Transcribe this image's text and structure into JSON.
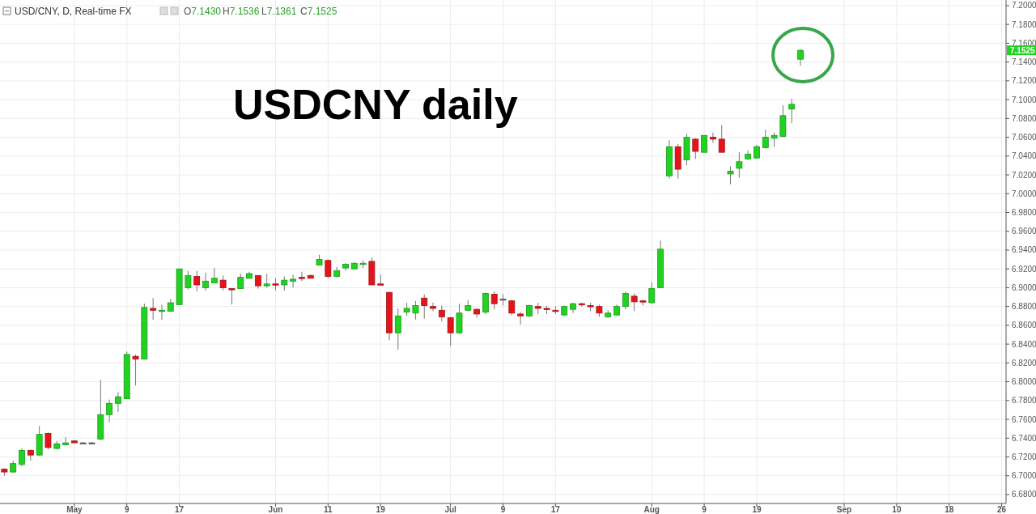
{
  "chart_data": {
    "type": "candlestick",
    "title": "USDCNY daily",
    "subtitle": "USD/CNY, D, Real-time FX",
    "annotations": [
      "O7.1430",
      "H7.1536",
      "L7.1361",
      "C7.1525",
      {
        "text": "7.1525",
        "y": 7.1525
      }
    ],
    "categories": [
      null,
      null,
      null,
      null,
      null,
      null,
      null,
      null,
      "May",
      null,
      null,
      null,
      null,
      null,
      "9",
      null,
      null,
      null,
      null,
      null,
      "17",
      null,
      null,
      null,
      null,
      null,
      null,
      null,
      null,
      null,
      null,
      "Jun",
      null,
      null,
      null,
      null,
      null,
      "11",
      null,
      null,
      null,
      null,
      null,
      "19",
      null,
      null,
      null,
      null,
      null,
      null,
      null,
      "Jul",
      null,
      null,
      null,
      null,
      null,
      "9",
      null,
      null,
      null,
      null,
      null,
      "17",
      null,
      null,
      null,
      null,
      null,
      null,
      null,
      null,
      null,
      null,
      "Aug",
      null,
      null,
      null,
      null,
      null,
      "9",
      null,
      null,
      null,
      null,
      null,
      "19",
      null,
      null,
      null,
      null,
      null,
      null,
      null,
      null,
      null,
      "Sep",
      null,
      null,
      null,
      null,
      null,
      "10",
      null,
      null,
      null,
      null,
      null,
      "18",
      null,
      null,
      null,
      null,
      null,
      "26"
    ],
    "ohlc": [
      [
        6.707,
        6.708,
        6.7,
        6.704
      ],
      [
        6.704,
        6.716,
        6.703,
        6.713
      ],
      [
        6.712,
        6.729,
        6.71,
        6.727
      ],
      [
        6.727,
        6.728,
        6.716,
        6.722
      ],
      [
        6.722,
        6.753,
        6.721,
        6.744
      ],
      [
        6.745,
        6.746,
        6.728,
        6.73
      ],
      [
        6.729,
        6.737,
        6.728,
        6.734
      ],
      [
        6.733,
        6.741,
        6.733,
        6.735
      ],
      [
        6.737,
        6.738,
        6.735,
        6.735
      ],
      [
        6.735,
        6.736,
        6.734,
        6.735
      ],
      [
        6.735,
        6.736,
        6.734,
        6.735
      ],
      [
        6.739,
        6.802,
        6.738,
        6.765
      ],
      [
        6.765,
        6.781,
        6.757,
        6.777
      ],
      [
        6.777,
        6.789,
        6.768,
        6.784
      ],
      [
        6.782,
        6.832,
        6.782,
        6.829
      ],
      [
        6.827,
        6.829,
        6.796,
        6.824
      ],
      [
        6.824,
        6.883,
        6.824,
        6.879
      ],
      [
        6.878,
        6.889,
        6.866,
        6.876
      ],
      [
        6.875,
        6.882,
        6.866,
        6.876
      ],
      [
        6.875,
        6.888,
        6.875,
        6.884
      ],
      [
        6.882,
        6.92,
        6.882,
        6.92
      ],
      [
        6.9,
        6.918,
        6.898,
        6.913
      ],
      [
        6.912,
        6.918,
        6.896,
        6.903
      ],
      [
        6.9,
        6.916,
        6.897,
        6.907
      ],
      [
        6.905,
        6.921,
        6.905,
        6.91
      ],
      [
        6.908,
        6.913,
        6.897,
        6.9
      ],
      [
        6.899,
        6.899,
        6.882,
        6.898
      ],
      [
        6.899,
        6.915,
        6.899,
        6.911
      ],
      [
        6.91,
        6.917,
        6.91,
        6.915
      ],
      [
        6.913,
        6.913,
        6.899,
        6.902
      ],
      [
        6.902,
        6.915,
        6.9,
        6.904
      ],
      [
        6.904,
        6.91,
        6.897,
        6.903
      ],
      [
        6.903,
        6.912,
        6.897,
        6.908
      ],
      [
        6.907,
        6.914,
        6.9,
        6.909
      ],
      [
        6.911,
        6.917,
        6.907,
        6.91
      ],
      [
        6.913,
        6.914,
        6.91,
        6.91
      ],
      [
        6.924,
        6.935,
        6.924,
        6.93
      ],
      [
        6.929,
        6.93,
        6.91,
        6.912
      ],
      [
        6.912,
        6.922,
        6.911,
        6.918
      ],
      [
        6.921,
        6.926,
        6.918,
        6.925
      ],
      [
        6.92,
        6.927,
        6.92,
        6.926
      ],
      [
        6.925,
        6.929,
        6.921,
        6.926
      ],
      [
        6.928,
        6.932,
        6.903,
        6.903
      ],
      [
        6.904,
        6.914,
        6.903,
        6.903
      ],
      [
        6.895,
        6.896,
        6.844,
        6.852
      ],
      [
        6.852,
        6.878,
        6.834,
        6.87
      ],
      [
        6.874,
        6.884,
        6.87,
        6.878
      ],
      [
        6.873,
        6.886,
        6.866,
        6.881
      ],
      [
        6.889,
        6.893,
        6.867,
        6.881
      ],
      [
        6.88,
        6.884,
        6.875,
        6.878
      ],
      [
        6.876,
        6.881,
        6.864,
        6.869
      ],
      [
        6.868,
        6.869,
        6.838,
        6.852
      ],
      [
        6.852,
        6.883,
        6.851,
        6.873
      ],
      [
        6.876,
        6.887,
        6.875,
        6.881
      ],
      [
        6.877,
        6.878,
        6.868,
        6.872
      ],
      [
        6.874,
        6.895,
        6.872,
        6.894
      ],
      [
        6.893,
        6.896,
        6.877,
        6.883
      ],
      [
        6.888,
        6.893,
        6.881,
        6.888
      ],
      [
        6.886,
        6.887,
        6.871,
        6.873
      ],
      [
        6.872,
        6.874,
        6.861,
        6.87
      ],
      [
        6.87,
        6.882,
        6.869,
        6.881
      ],
      [
        6.88,
        6.884,
        6.872,
        6.878
      ],
      [
        6.878,
        6.881,
        6.872,
        6.877
      ],
      [
        6.876,
        6.88,
        6.872,
        6.875
      ],
      [
        6.871,
        6.881,
        6.87,
        6.88
      ],
      [
        6.877,
        6.884,
        6.873,
        6.883
      ],
      [
        6.883,
        6.884,
        6.88,
        6.882
      ],
      [
        6.881,
        6.884,
        6.875,
        6.88
      ],
      [
        6.88,
        6.882,
        6.869,
        6.873
      ],
      [
        6.869,
        6.876,
        6.868,
        6.873
      ],
      [
        6.871,
        6.882,
        6.87,
        6.88
      ],
      [
        6.88,
        6.896,
        6.877,
        6.894
      ],
      [
        6.891,
        6.894,
        6.875,
        6.885
      ],
      [
        6.886,
        6.887,
        6.881,
        6.885
      ],
      [
        6.884,
        6.906,
        6.883,
        6.899
      ],
      [
        6.9,
        6.95,
        6.9,
        6.941
      ],
      [
        7.019,
        7.057,
        7.016,
        7.05
      ],
      [
        7.05,
        7.053,
        7.016,
        7.026
      ],
      [
        7.036,
        7.064,
        7.03,
        7.06
      ],
      [
        7.058,
        7.059,
        7.037,
        7.045
      ],
      [
        7.044,
        7.062,
        7.044,
        7.062
      ],
      [
        7.06,
        7.065,
        7.054,
        7.058
      ],
      [
        7.058,
        7.073,
        7.044,
        7.044
      ],
      [
        7.021,
        7.029,
        7.01,
        7.024
      ],
      [
        7.027,
        7.044,
        7.017,
        7.034
      ],
      [
        7.037,
        7.046,
        7.036,
        7.042
      ],
      [
        7.038,
        7.052,
        7.037,
        7.05
      ],
      [
        7.049,
        7.068,
        7.048,
        7.06
      ],
      [
        7.059,
        7.065,
        7.05,
        7.062
      ],
      [
        7.061,
        7.094,
        7.06,
        7.083
      ],
      [
        7.09,
        7.101,
        7.075,
        7.095
      ],
      [
        7.143,
        7.1536,
        7.1361,
        7.1525
      ],
      null,
      null,
      null,
      null,
      null,
      null,
      null,
      null,
      null,
      null,
      null,
      null,
      null,
      null,
      null,
      null,
      null,
      null,
      null,
      null,
      null,
      null,
      null
    ],
    "colors": [
      "#e3151a",
      "#21d321",
      "#21d321",
      "#e3151a",
      "#21d321",
      "#e3151a",
      "#21d321",
      "#21d321",
      "#e3151a",
      "#777777",
      "#777777",
      "#21d321",
      "#21d321",
      "#21d321",
      "#21d321",
      "#e3151a",
      "#21d321",
      "#e3151a",
      "#21d321",
      "#21d321",
      "#21d321",
      "#21d321",
      "#e3151a",
      "#21d321",
      "#21d321",
      "#e3151a",
      "#e3151a",
      "#21d321",
      "#21d321",
      "#e3151a",
      "#21d321",
      "#e3151a",
      "#21d321",
      "#21d321",
      "#e3151a",
      "#e3151a",
      "#21d321",
      "#e3151a",
      "#21d321",
      "#21d321",
      "#21d321",
      "#21d321",
      "#e3151a",
      "#e3151a",
      "#e3151a",
      "#21d321",
      "#21d321",
      "#21d321",
      "#e3151a",
      "#e3151a",
      "#e3151a",
      "#e3151a",
      "#21d321",
      "#21d321",
      "#e3151a",
      "#21d321",
      "#e3151a",
      "#777777",
      "#e3151a",
      "#e3151a",
      "#21d321",
      "#e3151a",
      "#e3151a",
      "#e3151a",
      "#21d321",
      "#21d321",
      "#e3151a",
      "#e3151a",
      "#e3151a",
      "#21d321",
      "#21d321",
      "#21d321",
      "#e3151a",
      "#e3151a",
      "#21d321",
      "#21d321",
      "#21d321",
      "#e3151a",
      "#21d321",
      "#e3151a",
      "#21d321",
      "#e3151a",
      "#e3151a",
      "#21d321",
      "#21d321",
      "#21d321",
      "#21d321",
      "#21d321",
      "#21d321",
      "#21d321",
      "#21d321",
      "#21d321",
      null,
      null,
      null,
      null,
      null,
      null,
      null,
      null,
      null,
      null,
      null,
      null,
      null,
      null,
      null,
      null,
      null,
      null,
      null,
      null,
      null,
      null,
      null
    ],
    "ylim": [
      6.6705,
      7.206
    ],
    "yticks": [
      {
        "value": 6.68,
        "label": "6.6800"
      },
      {
        "value": 6.7,
        "label": "6.7000"
      },
      {
        "value": 6.72,
        "label": "6.7200"
      },
      {
        "value": 6.74,
        "label": "6.7400"
      },
      {
        "value": 6.76,
        "label": "6.7600"
      },
      {
        "value": 6.78,
        "label": "6.7800"
      },
      {
        "value": 6.8,
        "label": "6.8000"
      },
      {
        "value": 6.82,
        "label": "6.8200"
      },
      {
        "value": 6.84,
        "label": "6.8400"
      },
      {
        "value": 6.86,
        "label": "6.8600"
      },
      {
        "value": 6.88,
        "label": "6.8800"
      },
      {
        "value": 6.9,
        "label": "6.9000"
      },
      {
        "value": 6.92,
        "label": "6.9200"
      },
      {
        "value": 6.94,
        "label": "6.9400"
      },
      {
        "value": 6.96,
        "label": "6.9600"
      },
      {
        "value": 6.98,
        "label": "6.9800"
      },
      {
        "value": 7.0,
        "label": "7.0000"
      },
      {
        "value": 7.02,
        "label": "7.0200"
      },
      {
        "value": 7.04,
        "label": "7.0400"
      },
      {
        "value": 7.06,
        "label": "7.0600"
      },
      {
        "value": 7.08,
        "label": "7.0800"
      },
      {
        "value": 7.1,
        "label": "7.1000"
      },
      {
        "value": 7.12,
        "label": "7.1200"
      },
      {
        "value": 7.14,
        "label": "7.1400"
      },
      {
        "value": 7.16,
        "label": "7.1600"
      },
      {
        "value": 7.18,
        "label": "7.1800"
      },
      {
        "value": 7.2,
        "label": "7.2000"
      }
    ],
    "grid": true
  }
}
